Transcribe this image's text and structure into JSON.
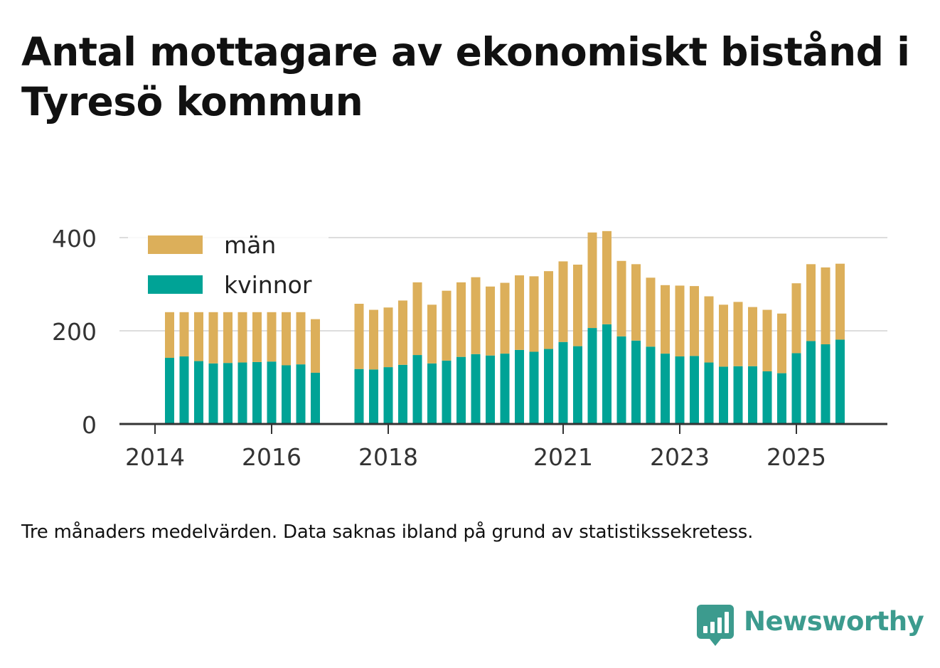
{
  "title": "Antal mottagare av ekonomiskt bistånd i Tyresö kommun",
  "note": "Tre månaders medelvärden. Data saknas ibland på grund av statistikssekretess.",
  "brand": {
    "name": "Newsworthy"
  },
  "colors": {
    "men": "#dcaf5a",
    "women": "#00a396",
    "grid": "#dddddd",
    "axis": "#333333",
    "text": "#333333",
    "brand": "#3c9b8e"
  },
  "chart_data": {
    "type": "bar",
    "stacked": true,
    "title": "Antal mottagare av ekonomiskt bistånd i Tyresö kommun",
    "xlabel": "",
    "ylabel": "",
    "ylim": [
      0,
      420
    ],
    "xlim": [
      2013.917,
      2026.583
    ],
    "yticks": [
      0,
      200,
      400
    ],
    "xticks": [
      2014,
      2016,
      2018,
      2021,
      2023,
      2025
    ],
    "grid": "horizontal",
    "legend_position": "top-left",
    "series": [
      {
        "name": "män",
        "color": "#dcaf5a",
        "values": [
          98,
          95,
          105,
          110,
          109,
          108,
          107,
          106,
          114,
          112,
          115,
          140,
          128,
          128,
          138,
          156,
          126,
          150,
          160,
          165,
          148,
          152,
          160,
          162,
          167,
          173,
          175,
          205,
          200,
          162,
          164,
          148,
          147,
          152,
          150,
          142,
          133,
          138,
          127,
          132,
          128,
          150,
          165,
          165,
          163
        ]
      },
      {
        "name": "kvinnor",
        "color": "#00a396",
        "values": [
          142,
          145,
          135,
          130,
          131,
          132,
          133,
          134,
          126,
          128,
          110,
          118,
          117,
          122,
          127,
          148,
          130,
          136,
          144,
          150,
          147,
          151,
          159,
          155,
          161,
          176,
          167,
          206,
          214,
          188,
          179,
          166,
          151,
          145,
          146,
          132,
          123,
          124,
          124,
          113,
          109,
          152,
          178,
          171,
          181
        ]
      }
    ],
    "x": [
      2014.25,
      2014.5,
      2014.75,
      2015.0,
      2015.25,
      2015.5,
      2015.75,
      2016.0,
      2016.25,
      2016.5,
      2016.75,
      2017.5,
      2017.75,
      2018.0,
      2018.25,
      2018.5,
      2018.75,
      2019.0,
      2019.25,
      2019.5,
      2019.75,
      2020.0,
      2020.25,
      2020.5,
      2020.75,
      2021.0,
      2021.25,
      2021.5,
      2021.75,
      2022.0,
      2022.25,
      2022.5,
      2022.75,
      2023.0,
      2023.25,
      2023.5,
      2023.75,
      2024.0,
      2024.25,
      2024.5,
      2024.75,
      2025.0,
      2025.25,
      2025.5,
      2025.75
    ]
  }
}
